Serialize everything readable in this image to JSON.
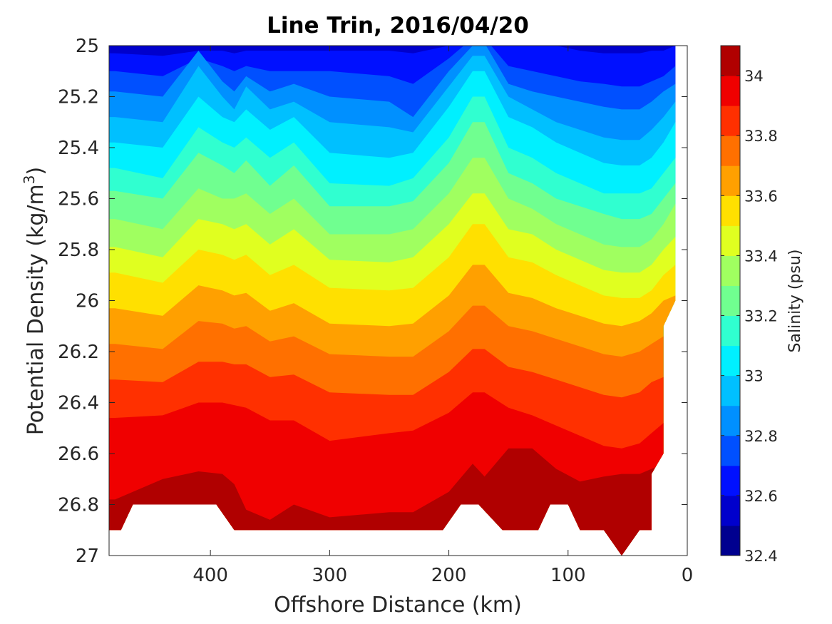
{
  "chart_data": {
    "type": "contour",
    "title": "Line Trin, 2016/04/20",
    "xlabel": "Offshore Distance (km)",
    "ylabel": "Potential Density (kg/m³)",
    "ylabel_main": "Potential Density (kg/m",
    "ylabel_sup": "3",
    "ylabel_close": ")",
    "x_range": [
      485,
      0
    ],
    "x_reversed": true,
    "y_range": [
      25,
      27
    ],
    "y_reversed": true,
    "x_ticks": [
      400,
      300,
      200,
      100,
      0
    ],
    "x_tick_labels": [
      "400",
      "300",
      "200",
      "100",
      "0"
    ],
    "y_ticks": [
      25,
      25.2,
      25.4,
      25.6,
      25.8,
      26,
      26.2,
      26.4,
      26.6,
      26.8,
      27
    ],
    "y_tick_labels": [
      "25",
      "25.2",
      "25.4",
      "25.6",
      "25.8",
      "26",
      "26.2",
      "26.4",
      "26.6",
      "26.8",
      "27"
    ],
    "colorbar": {
      "label": "Salinity (psu)",
      "range": [
        32.4,
        34.1
      ],
      "ticks": [
        32.4,
        32.6,
        32.8,
        33,
        33.2,
        33.4,
        33.6,
        33.8,
        34
      ],
      "tick_labels": [
        "32.4",
        "32.6",
        "32.8",
        "33",
        "33.2",
        "33.4",
        "33.6",
        "33.8",
        "34"
      ],
      "levels": [
        32.4,
        32.5,
        32.6,
        32.7,
        32.8,
        32.9,
        33.0,
        33.1,
        33.2,
        33.3,
        33.4,
        33.5,
        33.6,
        33.7,
        33.8,
        33.9,
        34.0,
        34.1
      ],
      "colors": [
        "#00008f",
        "#0000cc",
        "#0010ff",
        "#0050ff",
        "#0090ff",
        "#00c0ff",
        "#00f0ff",
        "#30ffd0",
        "#70ff90",
        "#a0ff60",
        "#e0ff20",
        "#ffe000",
        "#ffa000",
        "#ff7000",
        "#ff3000",
        "#f00000",
        "#b00000"
      ]
    },
    "stations_x": [
      480,
      440,
      410,
      390,
      380,
      370,
      350,
      330,
      300,
      250,
      230,
      200,
      180,
      170,
      150,
      130,
      110,
      90,
      70,
      55,
      40,
      30,
      20,
      10
    ],
    "isohalines": [
      {
        "s": 32.6,
        "y": [
          25.03,
          25.04,
          25.02,
          25.02,
          25.03,
          25.02,
          25.02,
          25.02,
          25.02,
          25.02,
          25.03,
          25.0,
          24.95,
          24.95,
          25.0,
          25.0,
          25.0,
          25.02,
          25.03,
          25.03,
          25.03,
          25.02,
          25.02,
          25.0
        ]
      },
      {
        "s": 32.7,
        "y": [
          25.1,
          25.12,
          25.05,
          25.08,
          25.1,
          25.08,
          25.1,
          25.1,
          25.1,
          25.12,
          25.15,
          25.05,
          24.97,
          24.97,
          25.08,
          25.1,
          25.12,
          25.14,
          25.15,
          25.16,
          25.16,
          25.14,
          25.12,
          25.08
        ]
      },
      {
        "s": 32.8,
        "y": [
          25.18,
          25.2,
          25.02,
          25.14,
          25.18,
          25.12,
          25.18,
          25.15,
          25.2,
          25.22,
          25.28,
          25.1,
          25.0,
          24.99,
          25.15,
          25.18,
          25.2,
          25.22,
          25.24,
          25.25,
          25.25,
          25.22,
          25.18,
          25.15
        ]
      },
      {
        "s": 32.9,
        "y": [
          25.28,
          25.3,
          25.08,
          25.2,
          25.25,
          25.16,
          25.25,
          25.22,
          25.3,
          25.32,
          25.34,
          25.16,
          25.04,
          25.04,
          25.2,
          25.25,
          25.3,
          25.33,
          25.36,
          25.37,
          25.37,
          25.33,
          25.28,
          25.22
        ]
      },
      {
        "s": 33.0,
        "y": [
          25.38,
          25.4,
          25.2,
          25.28,
          25.3,
          25.25,
          25.33,
          25.28,
          25.42,
          25.44,
          25.42,
          25.24,
          25.1,
          25.1,
          25.28,
          25.32,
          25.38,
          25.42,
          25.46,
          25.47,
          25.47,
          25.44,
          25.38,
          25.3
        ]
      },
      {
        "s": 33.1,
        "y": [
          25.48,
          25.52,
          25.32,
          25.38,
          25.4,
          25.36,
          25.44,
          25.38,
          25.54,
          25.55,
          25.52,
          25.36,
          25.2,
          25.2,
          25.4,
          25.44,
          25.5,
          25.54,
          25.58,
          25.58,
          25.58,
          25.56,
          25.5,
          25.44
        ]
      },
      {
        "s": 33.2,
        "y": [
          25.57,
          25.6,
          25.42,
          25.47,
          25.5,
          25.45,
          25.55,
          25.47,
          25.63,
          25.63,
          25.61,
          25.46,
          25.3,
          25.3,
          25.5,
          25.54,
          25.6,
          25.63,
          25.66,
          25.68,
          25.68,
          25.66,
          25.6,
          25.54
        ]
      },
      {
        "s": 33.3,
        "y": [
          25.68,
          25.72,
          25.56,
          25.6,
          25.6,
          25.58,
          25.66,
          25.6,
          25.74,
          25.74,
          25.72,
          25.58,
          25.44,
          25.44,
          25.6,
          25.64,
          25.7,
          25.74,
          25.78,
          25.79,
          25.79,
          25.76,
          25.7,
          25.62
        ]
      },
      {
        "s": 33.4,
        "y": [
          25.79,
          25.83,
          25.68,
          25.7,
          25.72,
          25.7,
          25.78,
          25.72,
          25.84,
          25.85,
          25.83,
          25.7,
          25.58,
          25.58,
          25.72,
          25.74,
          25.8,
          25.84,
          25.88,
          25.89,
          25.89,
          25.86,
          25.8,
          25.75
        ]
      },
      {
        "s": 33.5,
        "y": [
          25.89,
          25.93,
          25.8,
          25.82,
          25.84,
          25.82,
          25.9,
          25.86,
          25.95,
          25.96,
          25.95,
          25.83,
          25.7,
          25.7,
          25.83,
          25.85,
          25.9,
          25.94,
          25.98,
          25.99,
          25.99,
          25.96,
          25.9,
          25.86
        ]
      },
      {
        "s": 33.6,
        "y": [
          26.03,
          26.06,
          25.94,
          25.96,
          25.98,
          25.97,
          26.04,
          26.01,
          26.09,
          26.1,
          26.09,
          25.98,
          25.86,
          25.86,
          25.97,
          25.99,
          26.03,
          26.06,
          26.09,
          26.1,
          26.08,
          26.05,
          26.0,
          25.98
        ]
      },
      {
        "s": 33.7,
        "y": [
          26.17,
          26.19,
          26.08,
          26.09,
          26.11,
          26.1,
          26.16,
          26.14,
          26.21,
          26.22,
          26.22,
          26.12,
          26.02,
          26.02,
          26.1,
          26.12,
          26.15,
          26.18,
          26.21,
          26.22,
          26.2,
          26.17,
          26.14,
          26.12
        ]
      },
      {
        "s": 33.8,
        "y": [
          26.31,
          26.32,
          26.24,
          26.24,
          26.25,
          26.25,
          26.3,
          26.29,
          26.36,
          26.37,
          26.37,
          26.28,
          26.19,
          26.19,
          26.26,
          26.28,
          26.31,
          26.34,
          26.37,
          26.38,
          26.36,
          26.32,
          26.3,
          26.28
        ]
      },
      {
        "s": 33.9,
        "y": [
          26.46,
          26.45,
          26.4,
          26.4,
          26.41,
          26.42,
          26.47,
          26.47,
          26.55,
          26.52,
          26.51,
          26.44,
          26.36,
          26.36,
          26.42,
          26.45,
          26.49,
          26.53,
          26.57,
          26.58,
          26.56,
          26.52,
          26.48,
          26.45
        ]
      },
      {
        "s": 34.0,
        "y": [
          26.78,
          26.7,
          26.67,
          26.68,
          26.72,
          26.82,
          26.86,
          26.8,
          26.85,
          26.83,
          26.83,
          26.75,
          26.64,
          26.69,
          26.58,
          26.58,
          26.66,
          26.71,
          26.69,
          26.68,
          26.68,
          26.66,
          26.64,
          26.6
        ]
      },
      {
        "s": 34.1,
        "y": [
          27.2,
          27.2,
          27.2,
          27.2,
          27.2,
          27.2,
          27.2,
          27.2,
          27.2,
          27.2,
          27.2,
          27.2,
          27.2,
          27.2,
          27.2,
          27.2,
          27.2,
          27.2,
          26.88,
          26.87,
          26.88,
          27.2,
          27.2,
          27.2
        ]
      }
    ],
    "data_bottom": [
      [
        485,
        26.9
      ],
      [
        475,
        26.9
      ],
      [
        465,
        26.8
      ],
      [
        395,
        26.8
      ],
      [
        380,
        26.9
      ],
      [
        205,
        26.9
      ],
      [
        190,
        26.8
      ],
      [
        175,
        26.8
      ],
      [
        155,
        26.9
      ],
      [
        125,
        26.9
      ],
      [
        115,
        26.8
      ],
      [
        100,
        26.8
      ],
      [
        90,
        26.9
      ],
      [
        70,
        26.9
      ],
      [
        55,
        27.0
      ],
      [
        40,
        26.9
      ],
      [
        30,
        26.9
      ],
      [
        30,
        26.68
      ],
      [
        20,
        26.6
      ],
      [
        20,
        26.1
      ],
      [
        10,
        26.0
      ],
      [
        10,
        25.0
      ],
      [
        485,
        25.0
      ]
    ]
  }
}
